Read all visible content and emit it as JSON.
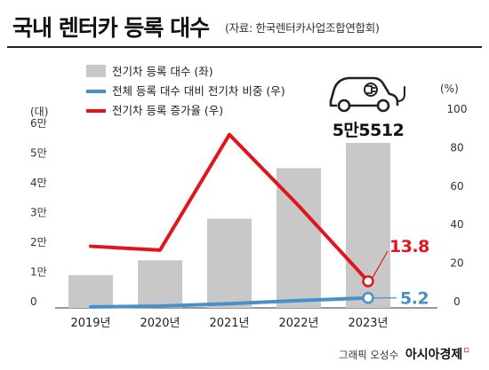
{
  "header": {
    "title": "국내 렌터카 등록 대수",
    "source": "(자료: 한국렌터카사업조합연합회)"
  },
  "footer": {
    "credit": "그래픽 오성수",
    "brand": "아시아경제"
  },
  "colors": {
    "bars": "#c8c8c8",
    "share_line": "#4a90c8",
    "growth_line": "#e0161c",
    "axis_text": "#333333"
  },
  "icons": [
    "electric-car-icon"
  ],
  "chart_data": {
    "type": "bar",
    "categories": [
      "2019년",
      "2020년",
      "2021년",
      "2022년",
      "2023년"
    ],
    "left_axis": {
      "unit": "(대)",
      "ticks": [
        "0",
        "1만",
        "2만",
        "3만",
        "4만",
        "5만",
        "6만"
      ],
      "ylim": [
        0,
        60000
      ]
    },
    "right_axis": {
      "unit": "(%)",
      "ticks": [
        "0",
        "20",
        "40",
        "60",
        "80",
        "100"
      ],
      "ylim": [
        0,
        100
      ]
    },
    "series": [
      {
        "name": "전기차 등록 대수 (좌)",
        "kind": "bar",
        "axis": "left",
        "values": [
          11000,
          16000,
          30000,
          47000,
          55512
        ]
      },
      {
        "name": "전체 등록 대수 대비 전기차 비중 (우)",
        "kind": "line",
        "axis": "right",
        "values": [
          0.5,
          0.9,
          2.2,
          3.8,
          5.2
        ]
      },
      {
        "name": "전기차 등록 증가율 (우)",
        "kind": "line",
        "axis": "right",
        "values": [
          32,
          30,
          90,
          53,
          13.8
        ]
      }
    ],
    "annotations": [
      {
        "label": "5만5512",
        "series": 0,
        "index": 4
      },
      {
        "label": "13.8",
        "series": 2,
        "index": 4
      },
      {
        "label": "5.2",
        "series": 1,
        "index": 4
      }
    ],
    "legend_position": "top-left",
    "grid": false
  }
}
